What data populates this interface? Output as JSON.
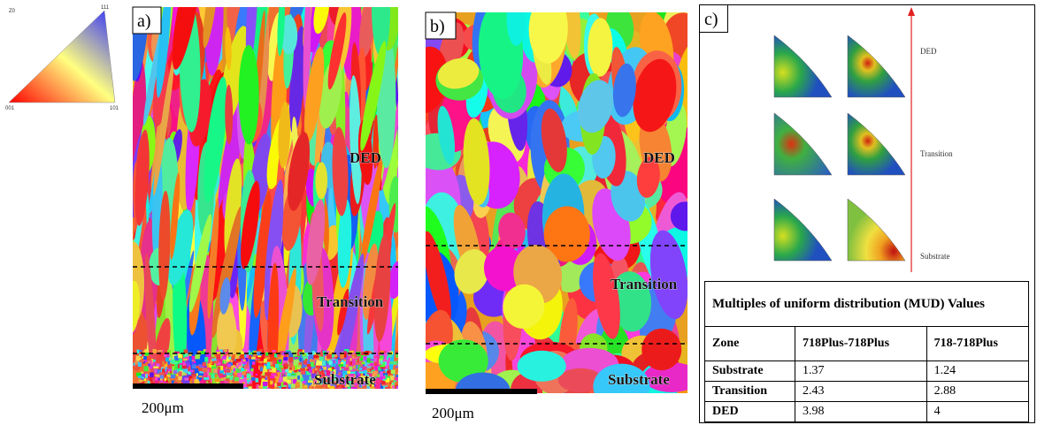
{
  "ipf_legend": {
    "axis": "Z0",
    "corner_top": "111",
    "corner_left": "001",
    "corner_right": "101"
  },
  "panels": [
    {
      "label": "a)",
      "zones": [
        "DED",
        "Transition",
        "Substrate"
      ],
      "scale_bar": "200μm"
    },
    {
      "label": "b)",
      "zones": [
        "DED",
        "Transition",
        "Substrate"
      ],
      "scale_bar": "200μm"
    },
    {
      "label": "c)",
      "zones": [
        "DED",
        "Transition",
        "Substrate"
      ]
    }
  ],
  "table": {
    "title": "Multiples of uniform distribution (MUD) Values",
    "header": [
      "Zone",
      "718Plus-718Plus",
      "718-718Plus"
    ],
    "rows": [
      [
        "Substrate",
        "1.37",
        "1.24"
      ],
      [
        "Transition",
        "2.43",
        "2.88"
      ],
      [
        "DED",
        "3.98",
        "4"
      ]
    ]
  }
}
